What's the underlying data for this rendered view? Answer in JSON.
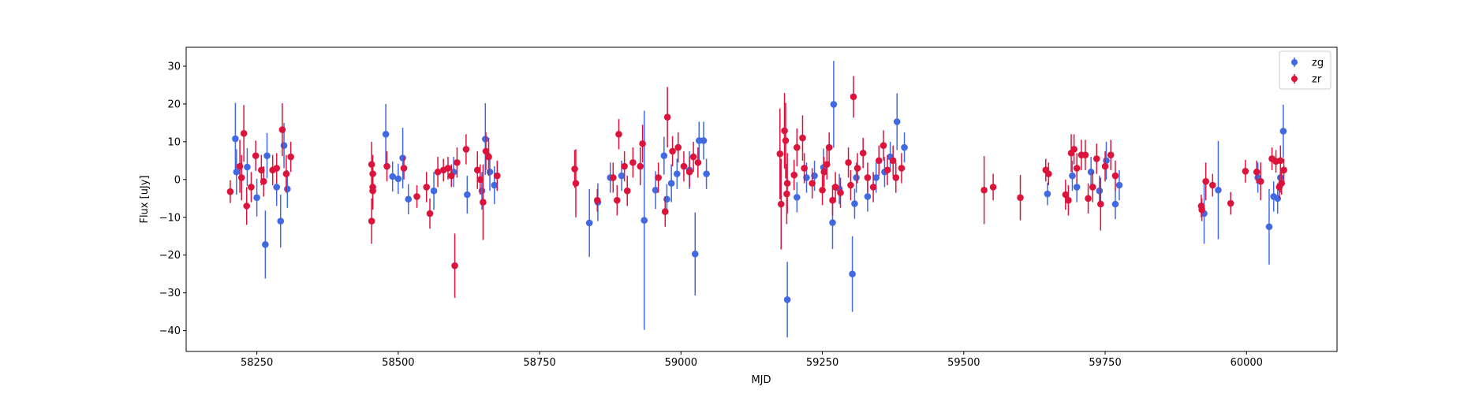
{
  "chart_data": {
    "type": "scatter",
    "xlabel": "MJD",
    "ylabel": "Flux [uJy]",
    "xlim": [
      58125,
      60160
    ],
    "ylim": [
      -45.5,
      35
    ],
    "xticks": [
      58250,
      58500,
      58750,
      59000,
      59250,
      59500,
      59750,
      60000
    ],
    "yticks": [
      -40,
      -30,
      -20,
      -10,
      0,
      10,
      20,
      30
    ],
    "grid": false,
    "legend": "top-right",
    "series": [
      {
        "name": "zg",
        "color": "#4169e1",
        "points": [
          {
            "x": 58212,
            "y": 10.8,
            "err": 9.5
          },
          {
            "x": 58214,
            "y": 2.0,
            "err": 6.0
          },
          {
            "x": 58233,
            "y": 3.3,
            "err": 5.0
          },
          {
            "x": 58250,
            "y": -4.8,
            "err": 5.0
          },
          {
            "x": 58265,
            "y": -17.2,
            "err": 9.0
          },
          {
            "x": 58268,
            "y": 6.3,
            "err": 6.0
          },
          {
            "x": 58285,
            "y": -2.0,
            "err": 5.0
          },
          {
            "x": 58292,
            "y": -11.0,
            "err": 7.0
          },
          {
            "x": 58298,
            "y": 9.0,
            "err": 6.0
          },
          {
            "x": 58304,
            "y": -2.5,
            "err": 5.0
          },
          {
            "x": 58478,
            "y": 12.0,
            "err": 8.0
          },
          {
            "x": 58490,
            "y": 0.8,
            "err": 4.0
          },
          {
            "x": 58500,
            "y": 0.2,
            "err": 4.0
          },
          {
            "x": 58508,
            "y": 5.7,
            "err": 8.0
          },
          {
            "x": 58518,
            "y": -5.2,
            "err": 4.0
          },
          {
            "x": 58563,
            "y": -3.0,
            "err": 5.0
          },
          {
            "x": 58598,
            "y": 2.0,
            "err": 4.0
          },
          {
            "x": 58622,
            "y": -4.0,
            "err": 5.0
          },
          {
            "x": 58648,
            "y": -3.0,
            "err": 5.0
          },
          {
            "x": 58654,
            "y": 10.7,
            "err": 9.5
          },
          {
            "x": 58662,
            "y": 2.0,
            "err": 5.0
          },
          {
            "x": 58670,
            "y": -1.5,
            "err": 5.0
          },
          {
            "x": 58838,
            "y": -11.5,
            "err": 9.0
          },
          {
            "x": 58853,
            "y": -6.0,
            "err": 5.0
          },
          {
            "x": 58875,
            "y": 0.5,
            "err": 4.0
          },
          {
            "x": 58895,
            "y": 1.0,
            "err": 4.0
          },
          {
            "x": 58935,
            "y": -10.8,
            "err": 29.0
          },
          {
            "x": 58955,
            "y": -2.8,
            "err": 5.0
          },
          {
            "x": 58970,
            "y": 6.3,
            "err": 5.0
          },
          {
            "x": 58975,
            "y": -5.2,
            "err": 4.0
          },
          {
            "x": 58983,
            "y": -1.0,
            "err": 5.0
          },
          {
            "x": 58993,
            "y": 1.5,
            "err": 4.0
          },
          {
            "x": 59015,
            "y": 2.5,
            "err": 5.0
          },
          {
            "x": 59025,
            "y": -19.7,
            "err": 11.0
          },
          {
            "x": 59032,
            "y": 10.3,
            "err": 5.0
          },
          {
            "x": 59040,
            "y": 10.3,
            "err": 5.0
          },
          {
            "x": 59045,
            "y": 1.5,
            "err": 4.0
          },
          {
            "x": 59188,
            "y": -31.8,
            "err": 10.0
          },
          {
            "x": 59205,
            "y": -4.7,
            "err": 4.0
          },
          {
            "x": 59222,
            "y": 0.5,
            "err": 4.0
          },
          {
            "x": 59236,
            "y": 1.0,
            "err": 4.0
          },
          {
            "x": 59252,
            "y": 3.2,
            "err": 5.0
          },
          {
            "x": 59268,
            "y": -11.4,
            "err": 7.0
          },
          {
            "x": 59270,
            "y": 19.9,
            "err": 11.5
          },
          {
            "x": 59280,
            "y": -2.5,
            "err": 4.0
          },
          {
            "x": 59303,
            "y": -25.0,
            "err": 10.0
          },
          {
            "x": 59307,
            "y": -6.4,
            "err": 4.0
          },
          {
            "x": 59310,
            "y": 0.5,
            "err": 4.0
          },
          {
            "x": 59330,
            "y": -4.5,
            "err": 4.0
          },
          {
            "x": 59345,
            "y": 0.5,
            "err": 4.0
          },
          {
            "x": 59360,
            "y": 2.0,
            "err": 4.0
          },
          {
            "x": 59370,
            "y": 6.0,
            "err": 4.0
          },
          {
            "x": 59382,
            "y": 15.3,
            "err": 7.5
          },
          {
            "x": 59395,
            "y": 8.5,
            "err": 4.0
          },
          {
            "x": 59648,
            "y": -3.8,
            "err": 3.0
          },
          {
            "x": 59692,
            "y": 1.0,
            "err": 4.0
          },
          {
            "x": 59700,
            "y": -2.0,
            "err": 4.0
          },
          {
            "x": 59725,
            "y": 2.0,
            "err": 4.0
          },
          {
            "x": 59740,
            "y": -3.0,
            "err": 4.0
          },
          {
            "x": 59752,
            "y": 5.0,
            "err": 5.0
          },
          {
            "x": 59768,
            "y": -6.5,
            "err": 4.0
          },
          {
            "x": 59775,
            "y": -1.5,
            "err": 4.0
          },
          {
            "x": 59925,
            "y": -9.0,
            "err": 8.0
          },
          {
            "x": 59950,
            "y": -2.8,
            "err": 13.0
          },
          {
            "x": 60020,
            "y": 0.5,
            "err": 4.0
          },
          {
            "x": 60040,
            "y": -12.5,
            "err": 10.0
          },
          {
            "x": 60048,
            "y": -4.5,
            "err": 4.0
          },
          {
            "x": 60055,
            "y": -5.0,
            "err": 4.0
          },
          {
            "x": 60060,
            "y": 0.5,
            "err": 4.0
          },
          {
            "x": 60065,
            "y": 12.8,
            "err": 7.0
          }
        ]
      },
      {
        "name": "zr",
        "color": "#dc143c",
        "points": [
          {
            "x": 58203,
            "y": -3.2,
            "err": 3.0
          },
          {
            "x": 58220,
            "y": 3.5,
            "err": 7.0
          },
          {
            "x": 58223,
            "y": 0.5,
            "err": 6.0
          },
          {
            "x": 58227,
            "y": 12.2,
            "err": 7.5
          },
          {
            "x": 58232,
            "y": -7.0,
            "err": 5.0
          },
          {
            "x": 58240,
            "y": -2.0,
            "err": 4.0
          },
          {
            "x": 58248,
            "y": 6.3,
            "err": 4.0
          },
          {
            "x": 58258,
            "y": 2.5,
            "err": 4.0
          },
          {
            "x": 58262,
            "y": -0.5,
            "err": 4.0
          },
          {
            "x": 58278,
            "y": 2.5,
            "err": 4.0
          },
          {
            "x": 58285,
            "y": 3.0,
            "err": 4.0
          },
          {
            "x": 58295,
            "y": 13.2,
            "err": 7.0
          },
          {
            "x": 58302,
            "y": 1.5,
            "err": 5.0
          },
          {
            "x": 58310,
            "y": 6.0,
            "err": 4.0
          },
          {
            "x": 58453,
            "y": 4.0,
            "err": 6.0
          },
          {
            "x": 58453,
            "y": -11.0,
            "err": 6.0
          },
          {
            "x": 58455,
            "y": -3.0,
            "err": 5.0
          },
          {
            "x": 58455,
            "y": 1.5,
            "err": 5.0
          },
          {
            "x": 58455,
            "y": -2.0,
            "err": 5.0
          },
          {
            "x": 58480,
            "y": 3.5,
            "err": 4.0
          },
          {
            "x": 58510,
            "y": 3.0,
            "err": 3.0
          },
          {
            "x": 58533,
            "y": -4.5,
            "err": 3.0
          },
          {
            "x": 58550,
            "y": -2.0,
            "err": 4.0
          },
          {
            "x": 58556,
            "y": -9.0,
            "err": 4.0
          },
          {
            "x": 58570,
            "y": 2.0,
            "err": 4.0
          },
          {
            "x": 58580,
            "y": 2.5,
            "err": 3.0
          },
          {
            "x": 58588,
            "y": 3.0,
            "err": 3.0
          },
          {
            "x": 58594,
            "y": 1.0,
            "err": 3.0
          },
          {
            "x": 58600,
            "y": -22.8,
            "err": 8.5
          },
          {
            "x": 58604,
            "y": 4.5,
            "err": 4.0
          },
          {
            "x": 58620,
            "y": 8.0,
            "err": 4.0
          },
          {
            "x": 58640,
            "y": 2.5,
            "err": 5.0
          },
          {
            "x": 58645,
            "y": 0.0,
            "err": 4.0
          },
          {
            "x": 58650,
            "y": -6.0,
            "err": 10.0
          },
          {
            "x": 58655,
            "y": 7.5,
            "err": 5.0
          },
          {
            "x": 58660,
            "y": 6.0,
            "err": 5.0
          },
          {
            "x": 58675,
            "y": 1.0,
            "err": 4.0
          },
          {
            "x": 58812,
            "y": 2.8,
            "err": 5.0
          },
          {
            "x": 58814,
            "y": -1.0,
            "err": 9.0
          },
          {
            "x": 58852,
            "y": -5.5,
            "err": 3.0
          },
          {
            "x": 58880,
            "y": 0.5,
            "err": 4.0
          },
          {
            "x": 58887,
            "y": -5.5,
            "err": 4.0
          },
          {
            "x": 58890,
            "y": 12.0,
            "err": 4.0
          },
          {
            "x": 58900,
            "y": 3.5,
            "err": 4.0
          },
          {
            "x": 58905,
            "y": -3.0,
            "err": 4.0
          },
          {
            "x": 58915,
            "y": 4.5,
            "err": 4.0
          },
          {
            "x": 58928,
            "y": 3.5,
            "err": 5.0
          },
          {
            "x": 58932,
            "y": 9.5,
            "err": 5.0
          },
          {
            "x": 58960,
            "y": 0.5,
            "err": 4.0
          },
          {
            "x": 58972,
            "y": -8.5,
            "err": 4.0
          },
          {
            "x": 58976,
            "y": 16.5,
            "err": 8.0
          },
          {
            "x": 58985,
            "y": 7.5,
            "err": 4.0
          },
          {
            "x": 58995,
            "y": 8.5,
            "err": 4.0
          },
          {
            "x": 59005,
            "y": 3.5,
            "err": 4.0
          },
          {
            "x": 59015,
            "y": 2.0,
            "err": 4.0
          },
          {
            "x": 59022,
            "y": 6.0,
            "err": 4.0
          },
          {
            "x": 59030,
            "y": 4.5,
            "err": 4.0
          },
          {
            "x": 59175,
            "y": 6.8,
            "err": 12.0
          },
          {
            "x": 59177,
            "y": -6.5,
            "err": 12.0
          },
          {
            "x": 59183,
            "y": 12.9,
            "err": 10.0
          },
          {
            "x": 59185,
            "y": 10.3,
            "err": 10.0
          },
          {
            "x": 59187,
            "y": -3.8,
            "err": 8.0
          },
          {
            "x": 59188,
            "y": -1.0,
            "err": 8.0
          },
          {
            "x": 59200,
            "y": 1.2,
            "err": 4.0
          },
          {
            "x": 59205,
            "y": 8.5,
            "err": 5.0
          },
          {
            "x": 59215,
            "y": 11.0,
            "err": 6.0
          },
          {
            "x": 59218,
            "y": 3.0,
            "err": 4.0
          },
          {
            "x": 59232,
            "y": -1.0,
            "err": 4.0
          },
          {
            "x": 59250,
            "y": -2.8,
            "err": 4.0
          },
          {
            "x": 59253,
            "y": 2.0,
            "err": 4.0
          },
          {
            "x": 59258,
            "y": 4.0,
            "err": 4.0
          },
          {
            "x": 59262,
            "y": 8.5,
            "err": 4.0
          },
          {
            "x": 59268,
            "y": -5.5,
            "err": 4.0
          },
          {
            "x": 59273,
            "y": -2.0,
            "err": 4.0
          },
          {
            "x": 59282,
            "y": -3.5,
            "err": 4.0
          },
          {
            "x": 59296,
            "y": 4.5,
            "err": 4.0
          },
          {
            "x": 59300,
            "y": -1.5,
            "err": 4.0
          },
          {
            "x": 59305,
            "y": 21.9,
            "err": 5.5
          },
          {
            "x": 59312,
            "y": 3.0,
            "err": 4.0
          },
          {
            "x": 59322,
            "y": 7.0,
            "err": 4.0
          },
          {
            "x": 59330,
            "y": 0.5,
            "err": 4.0
          },
          {
            "x": 59340,
            "y": -2.0,
            "err": 4.0
          },
          {
            "x": 59350,
            "y": 5.0,
            "err": 4.0
          },
          {
            "x": 59358,
            "y": 9.0,
            "err": 4.0
          },
          {
            "x": 59365,
            "y": 2.5,
            "err": 4.0
          },
          {
            "x": 59375,
            "y": 5.0,
            "err": 4.0
          },
          {
            "x": 59380,
            "y": 0.5,
            "err": 4.0
          },
          {
            "x": 59390,
            "y": 3.0,
            "err": 4.0
          },
          {
            "x": 59536,
            "y": -2.8,
            "err": 9.0
          },
          {
            "x": 59552,
            "y": -2.0,
            "err": 3.5
          },
          {
            "x": 59600,
            "y": -4.8,
            "err": 6.0
          },
          {
            "x": 59645,
            "y": 2.5,
            "err": 3.0
          },
          {
            "x": 59650,
            "y": 1.5,
            "err": 3.0
          },
          {
            "x": 59680,
            "y": -4.0,
            "err": 4.0
          },
          {
            "x": 59685,
            "y": -5.5,
            "err": 4.0
          },
          {
            "x": 59690,
            "y": 7.0,
            "err": 5.0
          },
          {
            "x": 59695,
            "y": 8.0,
            "err": 4.0
          },
          {
            "x": 59700,
            "y": 3.0,
            "err": 4.0
          },
          {
            "x": 59708,
            "y": 6.5,
            "err": 4.0
          },
          {
            "x": 59715,
            "y": 6.5,
            "err": 4.0
          },
          {
            "x": 59720,
            "y": -5.0,
            "err": 4.0
          },
          {
            "x": 59728,
            "y": -2.0,
            "err": 4.0
          },
          {
            "x": 59735,
            "y": 5.5,
            "err": 4.0
          },
          {
            "x": 59742,
            "y": -6.5,
            "err": 7.0
          },
          {
            "x": 59750,
            "y": 3.5,
            "err": 4.0
          },
          {
            "x": 59760,
            "y": 6.5,
            "err": 4.0
          },
          {
            "x": 59768,
            "y": 1.0,
            "err": 4.0
          },
          {
            "x": 59920,
            "y": -7.0,
            "err": 3.0
          },
          {
            "x": 59921,
            "y": -8.0,
            "err": 3.0
          },
          {
            "x": 59928,
            "y": -0.5,
            "err": 5.0
          },
          {
            "x": 59940,
            "y": -1.5,
            "err": 3.0
          },
          {
            "x": 59972,
            "y": -6.3,
            "err": 3.0
          },
          {
            "x": 59998,
            "y": 2.2,
            "err": 3.0
          },
          {
            "x": 60018,
            "y": 2.0,
            "err": 3.0
          },
          {
            "x": 60025,
            "y": -0.5,
            "err": 5.0
          },
          {
            "x": 60045,
            "y": 5.5,
            "err": 3.0
          },
          {
            "x": 60052,
            "y": 4.8,
            "err": 3.0
          },
          {
            "x": 60058,
            "y": -2.0,
            "err": 3.0
          },
          {
            "x": 60060,
            "y": 5.0,
            "err": 4.0
          },
          {
            "x": 60062,
            "y": -1.0,
            "err": 3.0
          },
          {
            "x": 60066,
            "y": 2.5,
            "err": 3.0
          }
        ]
      }
    ]
  }
}
